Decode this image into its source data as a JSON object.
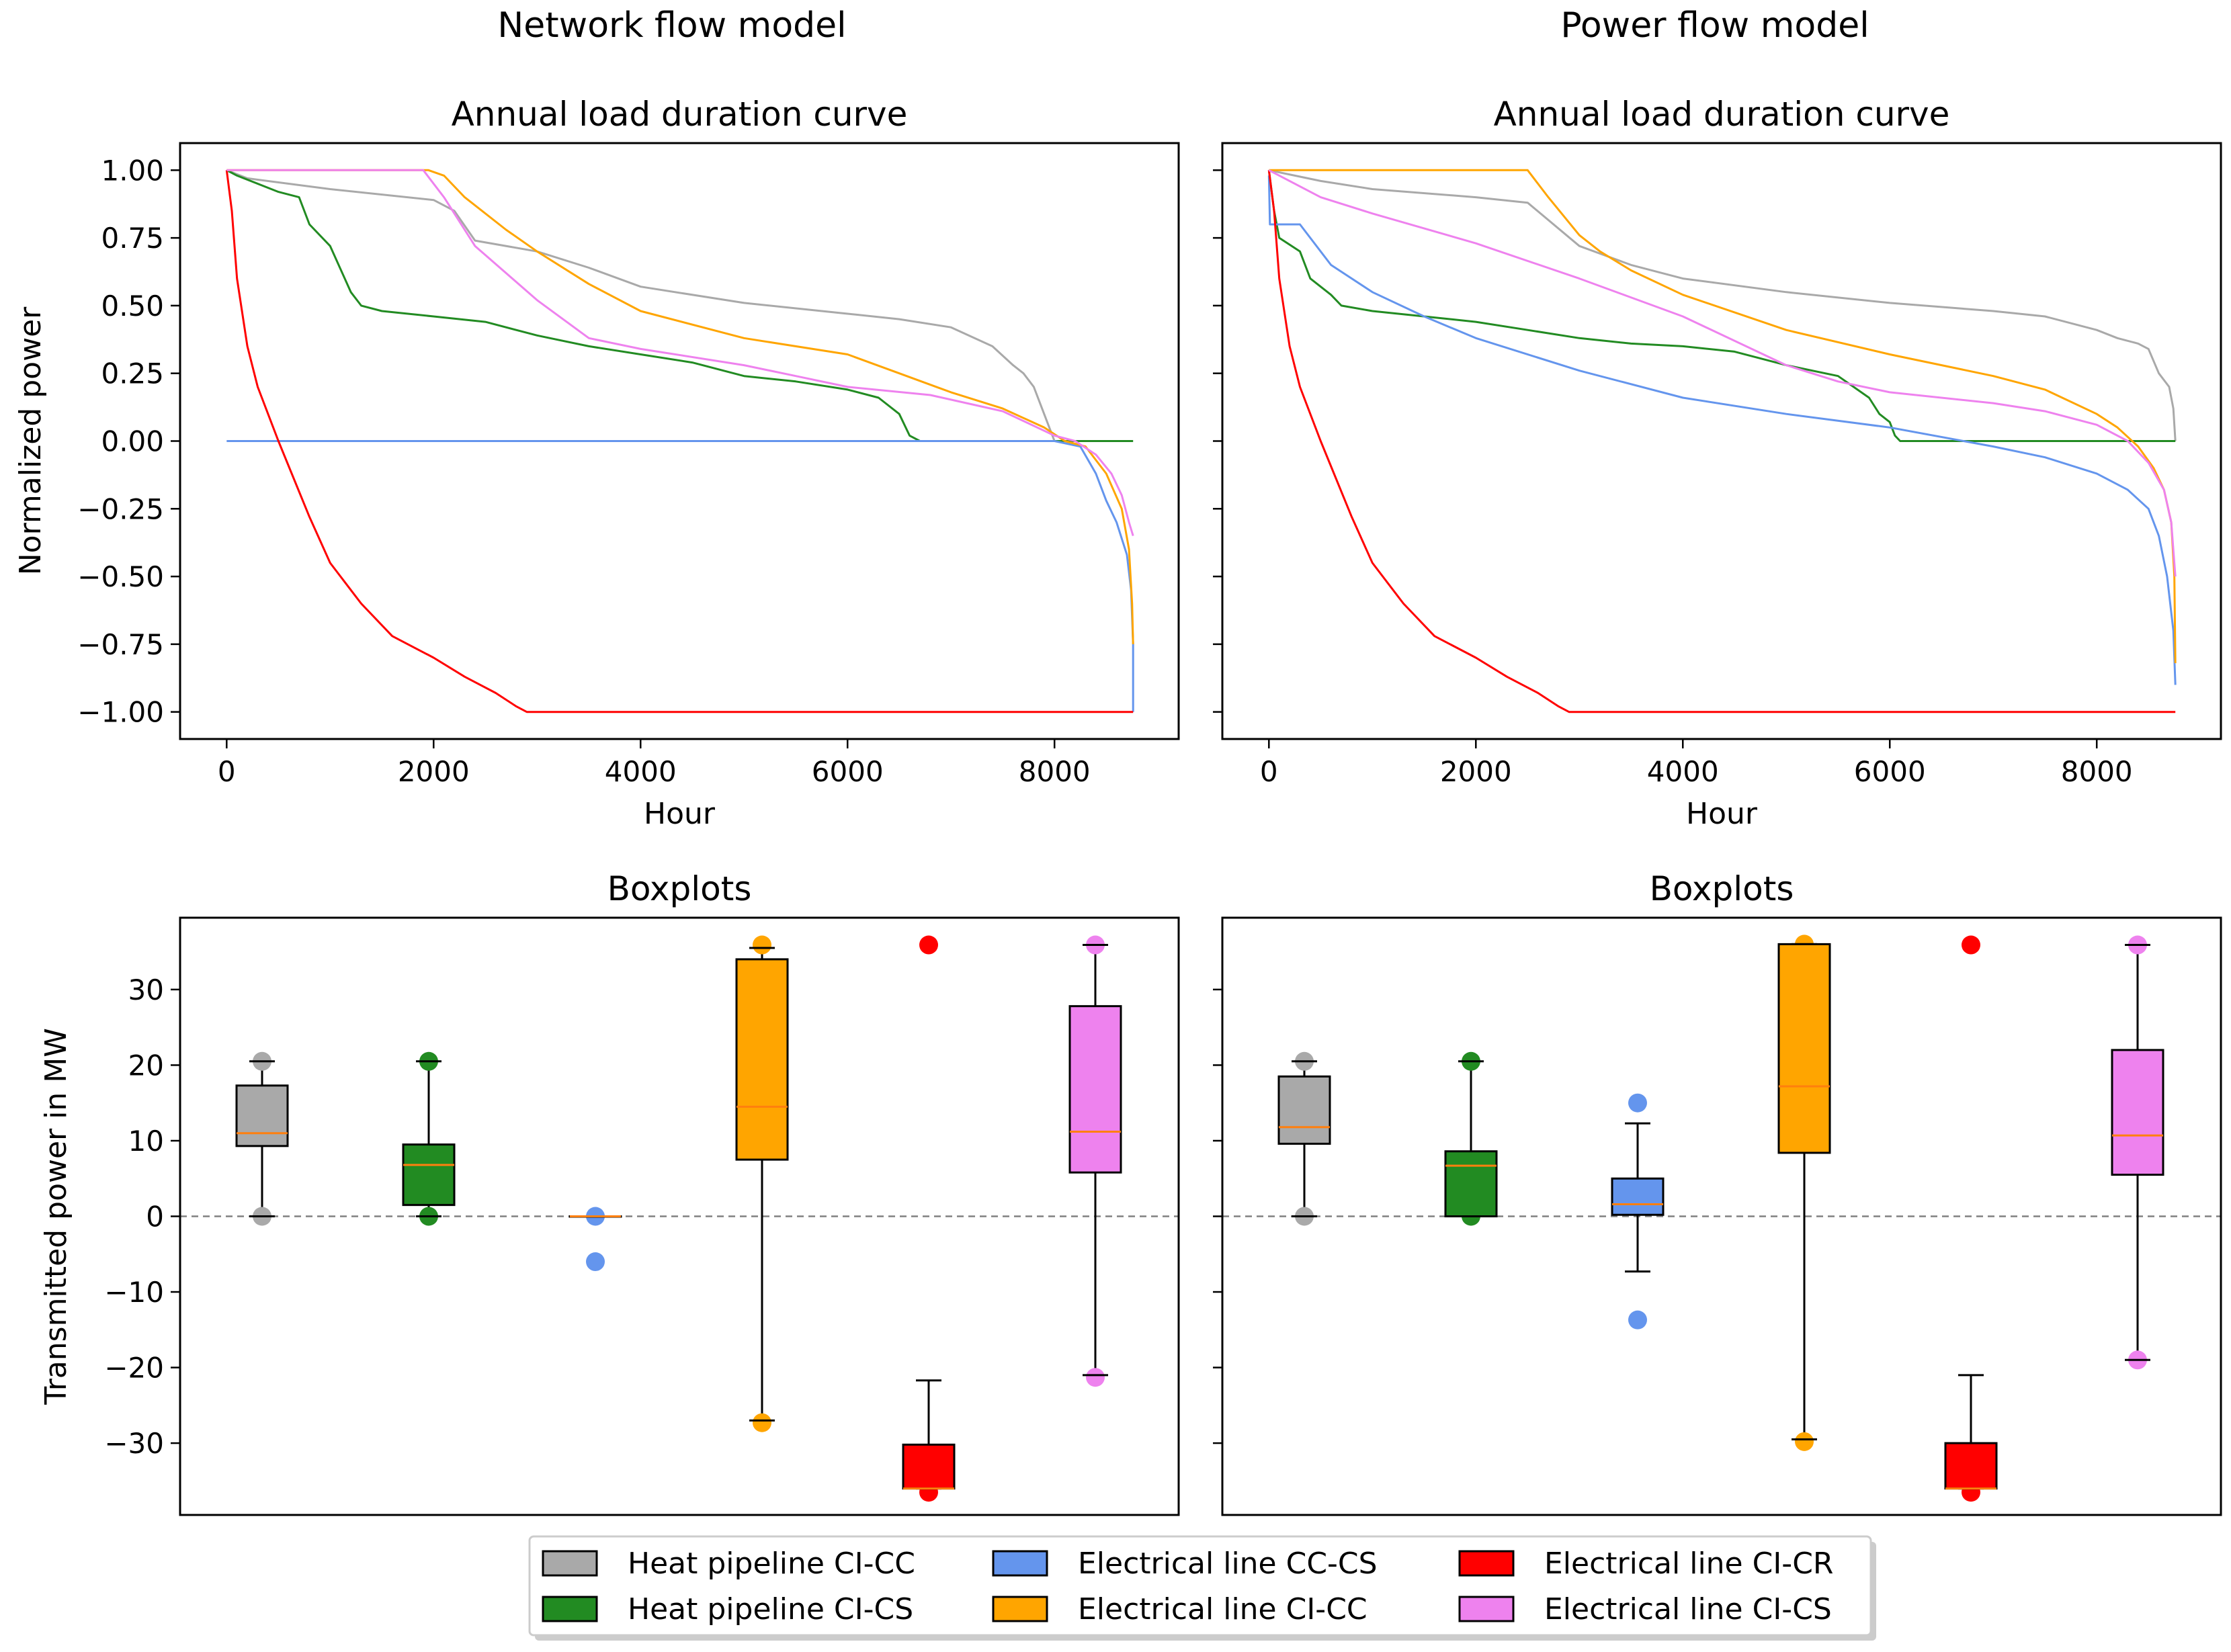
{
  "figure": {
    "column_titles": [
      "Network flow model",
      "Power flow model"
    ]
  },
  "colors": {
    "Heat pipeline CI-CC": "#a9a9a9",
    "Heat pipeline CI-CS": "#228b22",
    "Electrical line CC-CS": "#6495ed",
    "Electrical line CI-CC": "#ffa500",
    "Electrical line CI-CR": "#ff0000",
    "Electrical line CI-CS": "#ee82ee",
    "median": "#ff7f0e"
  },
  "legend": {
    "items": [
      "Heat pipeline CI-CC",
      "Heat pipeline CI-CS",
      "Electrical line CC-CS",
      "Electrical line CI-CC",
      "Electrical line CI-CR",
      "Electrical line CI-CS"
    ]
  },
  "chart_data": [
    {
      "id": "ldc-network",
      "type": "line",
      "title": "Annual load duration curve",
      "xlabel": "Hour",
      "ylabel": "Normalized power",
      "xlim": [
        -450,
        9200
      ],
      "ylim": [
        -1.1,
        1.1
      ],
      "xticks": [
        0,
        2000,
        4000,
        6000,
        8000
      ],
      "yticks": [
        1.0,
        0.75,
        0.5,
        0.25,
        0.0,
        -0.25,
        -0.5,
        -0.75,
        -1.0
      ],
      "ytick_labels": [
        "1.00",
        "0.75",
        "0.50",
        "0.25",
        "0.00",
        "−0.25",
        "−0.50",
        "−0.75",
        "−1.00"
      ],
      "series": [
        {
          "name": "Heat pipeline CI-CC",
          "x": [
            0,
            200,
            1000,
            2000,
            2200,
            2400,
            3000,
            3500,
            4000,
            5000,
            6000,
            6500,
            7000,
            7400,
            7600,
            7700,
            7800,
            7900,
            8000,
            8050,
            8100
          ],
          "y": [
            1.0,
            0.97,
            0.93,
            0.89,
            0.85,
            0.74,
            0.7,
            0.64,
            0.57,
            0.51,
            0.47,
            0.45,
            0.42,
            0.35,
            0.28,
            0.25,
            0.2,
            0.1,
            0.0,
            0.0,
            0.0
          ]
        },
        {
          "name": "Heat pipeline CI-CS",
          "x": [
            0,
            100,
            500,
            700,
            800,
            1000,
            1200,
            1300,
            1500,
            2000,
            2500,
            3000,
            3500,
            4000,
            4500,
            5000,
            5500,
            6000,
            6300,
            6500,
            6600,
            6700,
            7000,
            8000,
            8760
          ],
          "y": [
            1.0,
            0.98,
            0.92,
            0.9,
            0.8,
            0.72,
            0.55,
            0.5,
            0.48,
            0.46,
            0.44,
            0.39,
            0.35,
            0.32,
            0.29,
            0.24,
            0.22,
            0.19,
            0.16,
            0.1,
            0.02,
            0.0,
            0.0,
            0.0,
            0.0
          ]
        },
        {
          "name": "Electrical line CC-CS",
          "x": [
            0,
            8000,
            8250,
            8400,
            8500,
            8600,
            8700,
            8740,
            8760,
            8760
          ],
          "y": [
            0.0,
            0.0,
            -0.02,
            -0.12,
            -0.22,
            -0.3,
            -0.42,
            -0.55,
            -0.75,
            -1.0
          ]
        },
        {
          "name": "Electrical line CI-CC",
          "x": [
            0,
            1000,
            1950,
            2100,
            2300,
            2700,
            3000,
            3500,
            4000,
            5000,
            6000,
            6500,
            7000,
            7500,
            7900,
            8100,
            8300,
            8500,
            8650,
            8720,
            8750,
            8760
          ],
          "y": [
            1.0,
            1.0,
            1.0,
            0.98,
            0.9,
            0.78,
            0.7,
            0.58,
            0.48,
            0.38,
            0.32,
            0.25,
            0.18,
            0.12,
            0.05,
            0.0,
            -0.02,
            -0.12,
            -0.25,
            -0.4,
            -0.6,
            -0.75
          ]
        },
        {
          "name": "Electrical line CI-CR",
          "x": [
            0,
            50,
            100,
            200,
            300,
            500,
            800,
            1000,
            1300,
            1600,
            2000,
            2300,
            2600,
            2800,
            2900,
            8760
          ],
          "y": [
            1.0,
            0.85,
            0.6,
            0.35,
            0.2,
            0.0,
            -0.28,
            -0.45,
            -0.6,
            -0.72,
            -0.8,
            -0.87,
            -0.93,
            -0.98,
            -1.0,
            -1.0
          ]
        },
        {
          "name": "Electrical line CI-CS",
          "x": [
            0,
            1000,
            1900,
            2100,
            2400,
            3000,
            3500,
            4000,
            5000,
            5500,
            6000,
            6800,
            7500,
            8000,
            8200,
            8400,
            8550,
            8650,
            8720,
            8760
          ],
          "y": [
            1.0,
            1.0,
            1.0,
            0.9,
            0.72,
            0.52,
            0.38,
            0.34,
            0.28,
            0.24,
            0.2,
            0.17,
            0.11,
            0.02,
            0.0,
            -0.05,
            -0.12,
            -0.2,
            -0.3,
            -0.35
          ]
        }
      ]
    },
    {
      "id": "ldc-power",
      "type": "line",
      "title": "Annual load duration curve",
      "xlabel": "Hour",
      "ylabel": "",
      "xlim": [
        -450,
        9200
      ],
      "ylim": [
        -1.1,
        1.1
      ],
      "xticks": [
        0,
        2000,
        4000,
        6000,
        8000
      ],
      "yticks": [
        1.0,
        0.75,
        0.5,
        0.25,
        0.0,
        -0.25,
        -0.5,
        -0.75,
        -1.0
      ],
      "series": [
        {
          "name": "Heat pipeline CI-CC",
          "x": [
            0,
            500,
            1000,
            2000,
            2500,
            3000,
            3500,
            4000,
            5000,
            6000,
            7000,
            7500,
            8000,
            8200,
            8400,
            8500,
            8600,
            8700,
            8740,
            8760
          ],
          "y": [
            1.0,
            0.96,
            0.93,
            0.9,
            0.88,
            0.72,
            0.65,
            0.6,
            0.55,
            0.51,
            0.48,
            0.46,
            0.41,
            0.38,
            0.36,
            0.34,
            0.25,
            0.2,
            0.12,
            0.0
          ]
        },
        {
          "name": "Heat pipeline CI-CS",
          "x": [
            0,
            50,
            100,
            300,
            400,
            600,
            700,
            1000,
            1500,
            2000,
            2500,
            3000,
            3500,
            4000,
            4500,
            5000,
            5500,
            5800,
            5900,
            6000,
            6050,
            6100,
            8760
          ],
          "y": [
            1.0,
            0.85,
            0.75,
            0.7,
            0.6,
            0.54,
            0.5,
            0.48,
            0.46,
            0.44,
            0.41,
            0.38,
            0.36,
            0.35,
            0.33,
            0.28,
            0.24,
            0.16,
            0.1,
            0.07,
            0.02,
            0.0,
            0.0
          ]
        },
        {
          "name": "Electrical line CC-CS",
          "x": [
            0,
            10,
            300,
            600,
            1000,
            1500,
            2000,
            3000,
            4000,
            5000,
            6000,
            7000,
            7500,
            8000,
            8300,
            8500,
            8600,
            8680,
            8740,
            8760
          ],
          "y": [
            0.98,
            0.8,
            0.8,
            0.65,
            0.55,
            0.46,
            0.38,
            0.26,
            0.16,
            0.1,
            0.05,
            -0.02,
            -0.06,
            -0.12,
            -0.18,
            -0.25,
            -0.35,
            -0.5,
            -0.7,
            -0.9
          ]
        },
        {
          "name": "Electrical line CI-CC",
          "x": [
            0,
            1000,
            2500,
            2700,
            3000,
            3200,
            3500,
            4000,
            5000,
            6000,
            7000,
            7500,
            8000,
            8200,
            8400,
            8550,
            8650,
            8720,
            8750,
            8760
          ],
          "y": [
            1.0,
            1.0,
            1.0,
            0.9,
            0.76,
            0.7,
            0.63,
            0.54,
            0.41,
            0.32,
            0.24,
            0.19,
            0.1,
            0.05,
            -0.02,
            -0.1,
            -0.18,
            -0.3,
            -0.5,
            -0.82
          ]
        },
        {
          "name": "Electrical line CI-CR",
          "x": [
            0,
            50,
            100,
            200,
            300,
            500,
            800,
            1000,
            1300,
            1600,
            2000,
            2300,
            2600,
            2800,
            2900,
            8760
          ],
          "y": [
            1.0,
            0.85,
            0.6,
            0.35,
            0.2,
            0.0,
            -0.28,
            -0.45,
            -0.6,
            -0.72,
            -0.8,
            -0.87,
            -0.93,
            -0.98,
            -1.0,
            -1.0
          ]
        },
        {
          "name": "Electrical line CI-CS",
          "x": [
            0,
            500,
            1000,
            2000,
            3000,
            4000,
            5000,
            5500,
            6000,
            7000,
            7500,
            8000,
            8300,
            8500,
            8650,
            8720,
            8760
          ],
          "y": [
            1.0,
            0.9,
            0.84,
            0.73,
            0.6,
            0.46,
            0.28,
            0.22,
            0.18,
            0.14,
            0.11,
            0.06,
            0.0,
            -0.08,
            -0.18,
            -0.3,
            -0.5
          ]
        }
      ]
    },
    {
      "id": "box-network",
      "type": "box",
      "title": "Boxplots",
      "xlabel": "",
      "ylabel": "Transmitted power in MW",
      "ylim": [
        -39.5,
        39.5
      ],
      "yticks": [
        30,
        20,
        10,
        0,
        -10,
        -20,
        -30
      ],
      "ytick_labels": [
        "30",
        "20",
        "10",
        "0",
        "−10",
        "−20",
        "−30"
      ],
      "zero_line": 0,
      "boxes": [
        {
          "name": "Heat pipeline CI-CC",
          "q1": 9.3,
          "median": 11.0,
          "q3": 17.3,
          "whislo": 0.0,
          "whishi": 20.5,
          "fliers": [
            20.5,
            0.0
          ]
        },
        {
          "name": "Heat pipeline CI-CS",
          "q1": 1.5,
          "median": 6.8,
          "q3": 9.5,
          "whislo": 0.0,
          "whishi": 20.5,
          "fliers": [
            20.5,
            0.0
          ]
        },
        {
          "name": "Electrical line CC-CS",
          "q1": 0.0,
          "median": 0.0,
          "q3": 0.0,
          "whislo": 0.0,
          "whishi": 0.0,
          "fliers": [
            0.0,
            -6.0
          ]
        },
        {
          "name": "Electrical line CI-CC",
          "q1": 7.5,
          "median": 14.5,
          "q3": 34.0,
          "whislo": -27.0,
          "whishi": 35.5,
          "fliers": [
            35.9,
            -27.3
          ]
        },
        {
          "name": "Electrical line CI-CR",
          "q1": -36.0,
          "median": -36.0,
          "q3": -30.2,
          "whislo": -36.0,
          "whishi": -21.7,
          "fliers": [
            35.9,
            -36.5
          ]
        },
        {
          "name": "Electrical line CI-CS",
          "q1": 5.8,
          "median": 11.2,
          "q3": 27.8,
          "whislo": -21.0,
          "whishi": 35.9,
          "fliers": [
            35.9,
            -21.3
          ]
        }
      ]
    },
    {
      "id": "box-power",
      "type": "box",
      "title": "Boxplots",
      "xlabel": "",
      "ylabel": "",
      "ylim": [
        -39.5,
        39.5
      ],
      "yticks": [
        30,
        20,
        10,
        0,
        -10,
        -20,
        -30
      ],
      "zero_line": 0,
      "boxes": [
        {
          "name": "Heat pipeline CI-CC",
          "q1": 9.6,
          "median": 11.8,
          "q3": 18.5,
          "whislo": 0.0,
          "whishi": 20.5,
          "fliers": [
            20.5,
            0.0
          ]
        },
        {
          "name": "Heat pipeline CI-CS",
          "q1": 0.0,
          "median": 6.7,
          "q3": 8.6,
          "whislo": 0.0,
          "whishi": 20.5,
          "fliers": [
            20.5,
            0.0
          ]
        },
        {
          "name": "Electrical line CC-CS",
          "q1": 0.2,
          "median": 1.6,
          "q3": 5.0,
          "whislo": -7.3,
          "whishi": 12.3,
          "fliers": [
            15.0,
            -13.7
          ]
        },
        {
          "name": "Electrical line CI-CC",
          "q1": 8.4,
          "median": 17.2,
          "q3": 36.0,
          "whislo": -29.5,
          "whishi": 36.0,
          "fliers": [
            36.0,
            -29.8
          ]
        },
        {
          "name": "Electrical line CI-CR",
          "q1": -36.0,
          "median": -36.0,
          "q3": -30.0,
          "whislo": -36.0,
          "whishi": -21.0,
          "fliers": [
            35.9,
            -36.5
          ]
        },
        {
          "name": "Electrical line CI-CS",
          "q1": 5.5,
          "median": 10.7,
          "q3": 22.0,
          "whislo": -19.0,
          "whishi": 35.9,
          "fliers": [
            35.9,
            -19.0
          ]
        }
      ]
    }
  ]
}
